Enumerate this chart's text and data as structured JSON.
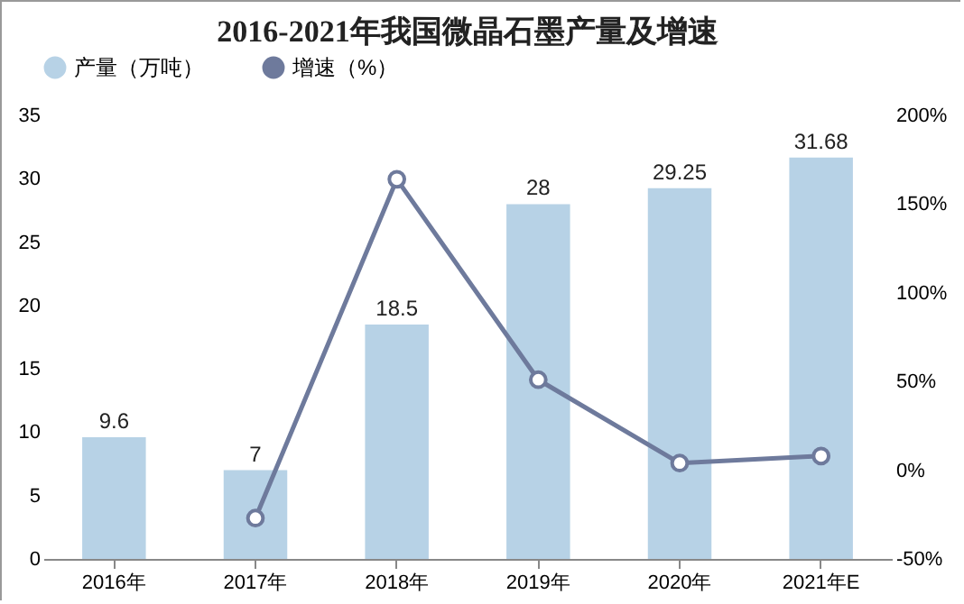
{
  "chart_data": {
    "type": "bar",
    "title": "2016-2021年我国微晶石墨产量及增速",
    "categories": [
      "2016年",
      "2017年",
      "2018年",
      "2019年",
      "2020年",
      "2021年E"
    ],
    "series": [
      {
        "name": "产量（万吨）",
        "color": "#b7d2e6",
        "values": [
          9.6,
          7,
          18.5,
          28,
          29.25,
          31.68
        ],
        "value_labels": [
          "9.6",
          "7",
          "18.5",
          "28",
          "29.25",
          "31.68"
        ]
      },
      {
        "name": "增速（%）",
        "type": "line",
        "axis": "y2",
        "color": "#6e7a9c",
        "values": [
          null,
          -27,
          164,
          51,
          4,
          8
        ]
      }
    ],
    "ylim": [
      0,
      35
    ],
    "yticks": [
      0,
      5,
      10,
      15,
      20,
      25,
      30,
      35
    ],
    "y2lim": [
      -50,
      200
    ],
    "y2ticks": [
      {
        "value": -50,
        "label": "-50%"
      },
      {
        "value": 0,
        "label": "0%"
      },
      {
        "value": 50,
        "label": "50%"
      },
      {
        "value": 100,
        "label": "100%"
      },
      {
        "value": 150,
        "label": "150%"
      },
      {
        "value": 200,
        "label": "200%"
      }
    ],
    "marker": "circle",
    "legend": "top",
    "grid": false
  }
}
